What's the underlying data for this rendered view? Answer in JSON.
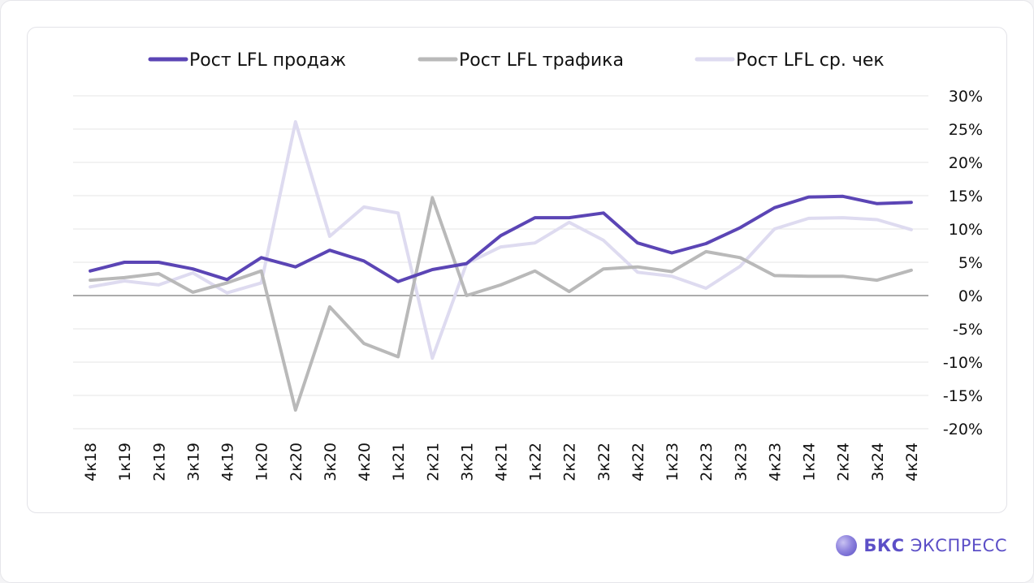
{
  "chart_data": {
    "type": "line",
    "title": "",
    "xlabel": "",
    "ylabel": "",
    "categories": [
      "4к18",
      "1к19",
      "2к19",
      "3к19",
      "4к19",
      "1к20",
      "2к20",
      "3к20",
      "4к20",
      "1к21",
      "2к21",
      "3к21",
      "4к21",
      "1к22",
      "2к22",
      "3к22",
      "4к22",
      "1к23",
      "2к23",
      "3к23",
      "4к23",
      "1к24",
      "2к24",
      "3к24",
      "4к24"
    ],
    "ylim": [
      -20,
      30
    ],
    "yticks": [
      30,
      25,
      20,
      15,
      10,
      5,
      0,
      -5,
      -10,
      -15,
      -20
    ],
    "ytick_labels": [
      "30%",
      "25%",
      "20%",
      "15%",
      "10%",
      "5%",
      "0%",
      "-5%",
      "-10%",
      "-15%",
      "-20%"
    ],
    "grid": true,
    "legend": "top",
    "y_axis_position": "right",
    "series": [
      {
        "name": "Рост LFL продаж",
        "color": "#5b45b5",
        "values": [
          3.7,
          5.0,
          5.0,
          4.0,
          2.4,
          5.7,
          4.3,
          6.8,
          5.2,
          2.1,
          3.9,
          4.8,
          9.0,
          11.7,
          11.7,
          12.4,
          7.9,
          6.4,
          7.8,
          10.2,
          13.2,
          14.8,
          14.9,
          13.8,
          14.0
        ]
      },
      {
        "name": "Рост LFL трафика",
        "color": "#b9b9b9",
        "values": [
          2.3,
          2.7,
          3.3,
          0.5,
          1.9,
          3.7,
          -17.2,
          -1.7,
          -7.2,
          -9.2,
          14.7,
          0.0,
          1.6,
          3.7,
          0.6,
          4.0,
          4.3,
          3.6,
          6.6,
          5.7,
          3.0,
          2.9,
          2.9,
          2.3,
          3.8
        ]
      },
      {
        "name": "Рост LFL ср. чек",
        "color": "#dedbf0",
        "values": [
          1.3,
          2.2,
          1.6,
          3.4,
          0.4,
          1.9,
          26.1,
          8.9,
          13.3,
          12.4,
          -9.4,
          4.8,
          7.3,
          7.9,
          11.0,
          8.3,
          3.5,
          2.9,
          1.1,
          4.4,
          10.0,
          11.6,
          11.7,
          11.4,
          9.9
        ]
      }
    ]
  },
  "brand": {
    "name_bold": "БКС",
    "name_regular": "ЭКСПРЕСС"
  }
}
